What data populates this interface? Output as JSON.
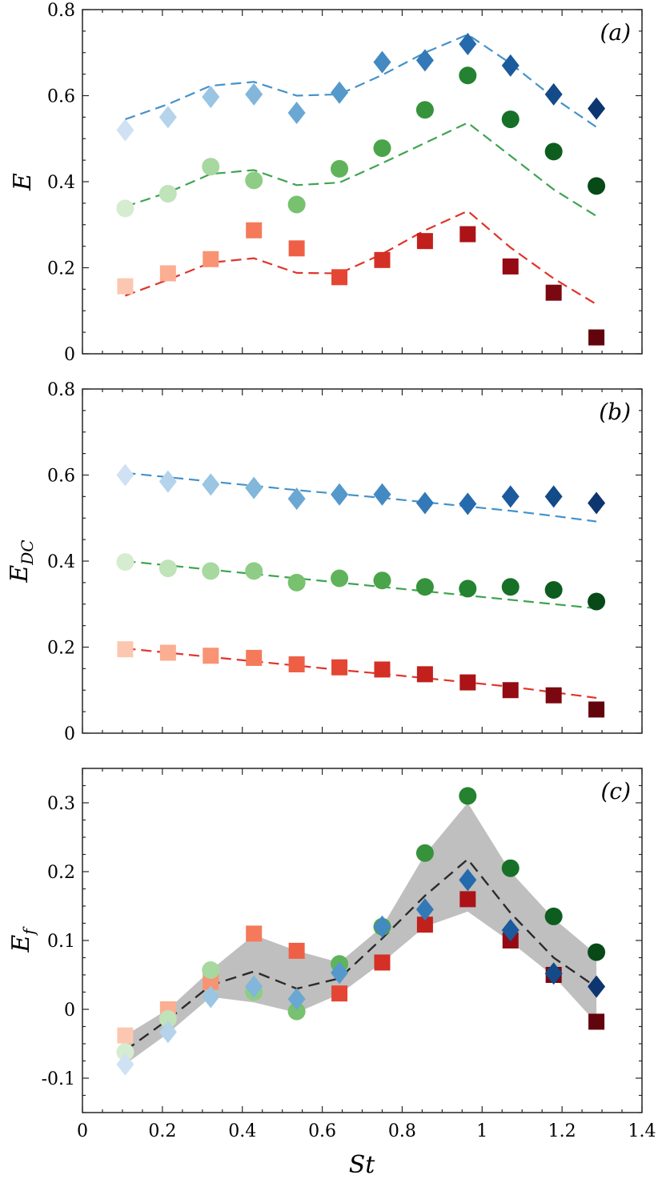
{
  "figure": {
    "xlabel_main": "St",
    "xlabel_sub": ""
  },
  "chart_data": [
    {
      "type": "scatter",
      "panel_label": "(a)",
      "ylabel_main": "E",
      "ylabel_sub": "",
      "xlim": [
        0,
        1.4
      ],
      "ylim": [
        0,
        0.8
      ],
      "yticks": [
        0,
        0.2,
        0.4,
        0.6,
        0.8
      ],
      "ytick_labels": [
        "0",
        "0.2",
        "0.4",
        "0.6",
        "0.8"
      ],
      "x": [
        0.107,
        0.214,
        0.321,
        0.429,
        0.536,
        0.643,
        0.75,
        0.857,
        0.964,
        1.071,
        1.179,
        1.286
      ],
      "series": [
        {
          "name": "diamond",
          "marker": "diamond",
          "values": [
            0.52,
            0.55,
            0.597,
            0.603,
            0.56,
            0.607,
            0.678,
            0.682,
            0.72,
            0.67,
            0.603,
            0.57
          ],
          "colors": [
            "#cfe1f2",
            "#b5d3eb",
            "#9ac5e3",
            "#82b6db",
            "#6ba7d3",
            "#5598cb",
            "#4389c2",
            "#3379b8",
            "#256aac",
            "#1b5a9c",
            "#134a88",
            "#0d3670"
          ],
          "fit": [
            0.545,
            0.58,
            0.623,
            0.632,
            0.6,
            0.603,
            0.648,
            0.7,
            0.742,
            0.675,
            0.595,
            0.527
          ],
          "fit_color": "#4592c9"
        },
        {
          "name": "circle",
          "marker": "circle",
          "values": [
            0.338,
            0.372,
            0.435,
            0.403,
            0.347,
            0.43,
            0.478,
            0.567,
            0.647,
            0.545,
            0.47,
            0.39
          ],
          "colors": [
            "#d5ecd0",
            "#c0e3b9",
            "#a7d89f",
            "#8fcd86",
            "#77c16f",
            "#60b35b",
            "#4aa44a",
            "#36933c",
            "#248230",
            "#177027",
            "#0d5d1e",
            "#074a17"
          ],
          "fit": [
            0.342,
            0.375,
            0.418,
            0.427,
            0.392,
            0.398,
            0.443,
            0.49,
            0.537,
            0.46,
            0.382,
            0.32
          ],
          "fit_color": "#3fa450"
        },
        {
          "name": "square",
          "marker": "square",
          "values": [
            0.157,
            0.187,
            0.22,
            0.287,
            0.245,
            0.178,
            0.218,
            0.262,
            0.278,
            0.203,
            0.142,
            0.038
          ],
          "colors": [
            "#fcc7b0",
            "#fbae91",
            "#f89373",
            "#f47a5b",
            "#ee6046",
            "#e44633",
            "#d43026",
            "#c1201c",
            "#ab1317",
            "#940b13",
            "#7b0710",
            "#62040c"
          ],
          "fit": [
            0.135,
            0.172,
            0.212,
            0.222,
            0.188,
            0.187,
            0.232,
            0.287,
            0.332,
            0.247,
            0.175,
            0.115
          ],
          "fit_color": "#e0342a"
        }
      ]
    },
    {
      "type": "scatter",
      "panel_label": "(b)",
      "ylabel_main": "E",
      "ylabel_sub": "DC",
      "xlim": [
        0,
        1.4
      ],
      "ylim": [
        0,
        0.8
      ],
      "yticks": [
        0,
        0.2,
        0.4,
        0.6,
        0.8
      ],
      "ytick_labels": [
        "0",
        "0.2",
        "0.4",
        "0.6",
        "0.8"
      ],
      "x": [
        0.107,
        0.214,
        0.321,
        0.429,
        0.536,
        0.643,
        0.75,
        0.857,
        0.964,
        1.071,
        1.179,
        1.286
      ],
      "series": [
        {
          "name": "diamond",
          "marker": "diamond",
          "values": [
            0.6,
            0.585,
            0.578,
            0.57,
            0.545,
            0.555,
            0.555,
            0.535,
            0.533,
            0.55,
            0.55,
            0.535
          ],
          "colors": [
            "#cfe1f2",
            "#b5d3eb",
            "#9ac5e3",
            "#82b6db",
            "#6ba7d3",
            "#5598cb",
            "#4389c2",
            "#3379b8",
            "#256aac",
            "#1b5a9c",
            "#134a88",
            "#0d3670"
          ],
          "fit": [
            0.605,
            0.595,
            0.585,
            0.575,
            0.565,
            0.556,
            0.547,
            0.537,
            0.527,
            0.517,
            0.505,
            0.492
          ],
          "fit_color": "#4592c9"
        },
        {
          "name": "circle",
          "marker": "circle",
          "values": [
            0.398,
            0.383,
            0.377,
            0.377,
            0.35,
            0.36,
            0.355,
            0.34,
            0.336,
            0.34,
            0.333,
            0.306
          ],
          "colors": [
            "#d5ecd0",
            "#c0e3b9",
            "#a7d89f",
            "#8fcd86",
            "#77c16f",
            "#60b35b",
            "#4aa44a",
            "#36933c",
            "#248230",
            "#177027",
            "#0d5d1e",
            "#074a17"
          ],
          "fit": [
            0.4,
            0.39,
            0.38,
            0.37,
            0.36,
            0.35,
            0.34,
            0.33,
            0.32,
            0.31,
            0.3,
            0.29
          ],
          "fit_color": "#3fa450"
        },
        {
          "name": "square",
          "marker": "square",
          "values": [
            0.195,
            0.187,
            0.18,
            0.175,
            0.16,
            0.153,
            0.148,
            0.137,
            0.118,
            0.1,
            0.088,
            0.055
          ],
          "colors": [
            "#fcc7b0",
            "#fbae91",
            "#f89373",
            "#f47a5b",
            "#ee6046",
            "#e44633",
            "#d43026",
            "#c1201c",
            "#ab1317",
            "#940b13",
            "#7b0710",
            "#62040c"
          ],
          "fit": [
            0.197,
            0.187,
            0.177,
            0.167,
            0.157,
            0.147,
            0.138,
            0.128,
            0.118,
            0.108,
            0.095,
            0.082
          ],
          "fit_color": "#e0342a"
        }
      ]
    },
    {
      "type": "scatter",
      "panel_label": "(c)",
      "ylabel_main": "E",
      "ylabel_sub": "f",
      "xlim": [
        0,
        1.4
      ],
      "ylim": [
        -0.15,
        0.35
      ],
      "yticks": [
        -0.1,
        0,
        0.1,
        0.2,
        0.3
      ],
      "ytick_labels": [
        "-0.1",
        "0",
        "0.1",
        "0.2",
        "0.3"
      ],
      "x": [
        0.107,
        0.214,
        0.321,
        0.429,
        0.536,
        0.643,
        0.75,
        0.857,
        0.964,
        1.071,
        1.179,
        1.286
      ],
      "band": {
        "upper": [
          -0.038,
          0.0,
          0.057,
          0.108,
          0.085,
          0.068,
          0.12,
          0.225,
          0.3,
          0.2,
          0.132,
          0.08
        ],
        "lower": [
          -0.08,
          -0.035,
          0.018,
          0.01,
          -0.005,
          0.022,
          0.068,
          0.12,
          0.142,
          0.098,
          0.048,
          -0.02
        ],
        "color": "#bfbfbf"
      },
      "mean_line": {
        "values": [
          -0.06,
          -0.015,
          0.035,
          0.055,
          0.03,
          0.045,
          0.103,
          0.165,
          0.218,
          0.14,
          0.075,
          0.032
        ],
        "color": "#2b2b2b"
      },
      "series": [
        {
          "name": "square",
          "marker": "square",
          "values": [
            -0.038,
            0.0,
            0.04,
            0.11,
            0.085,
            0.023,
            0.068,
            0.123,
            0.16,
            0.1,
            0.05,
            -0.018
          ],
          "colors": [
            "#fcc7b0",
            "#fbae91",
            "#f89373",
            "#f47a5b",
            "#ee6046",
            "#e44633",
            "#d43026",
            "#c1201c",
            "#ab1317",
            "#940b13",
            "#7b0710",
            "#62040c"
          ]
        },
        {
          "name": "circle",
          "marker": "circle",
          "values": [
            -0.062,
            -0.014,
            0.057,
            0.025,
            -0.003,
            0.066,
            0.12,
            0.227,
            0.31,
            0.205,
            0.135,
            0.083
          ],
          "colors": [
            "#d5ecd0",
            "#c0e3b9",
            "#a7d89f",
            "#8fcd86",
            "#77c16f",
            "#60b35b",
            "#4aa44a",
            "#36933c",
            "#248230",
            "#177027",
            "#0d5d1e",
            "#074a17"
          ]
        },
        {
          "name": "diamond",
          "marker": "diamond",
          "values": [
            -0.08,
            -0.033,
            0.018,
            0.033,
            0.015,
            0.053,
            0.12,
            0.145,
            0.188,
            0.115,
            0.052,
            0.033
          ],
          "colors": [
            "#cfe1f2",
            "#b5d3eb",
            "#9ac5e3",
            "#82b6db",
            "#6ba7d3",
            "#5598cb",
            "#4389c2",
            "#3379b8",
            "#256aac",
            "#1b5a9c",
            "#134a88",
            "#0d3670"
          ]
        }
      ],
      "xticks": [
        0,
        0.2,
        0.4,
        0.6,
        0.8,
        1,
        1.2,
        1.4
      ],
      "xtick_labels": [
        "0",
        "0.2",
        "0.4",
        "0.6",
        "0.8",
        "1",
        "1.2",
        "1.4"
      ]
    }
  ]
}
